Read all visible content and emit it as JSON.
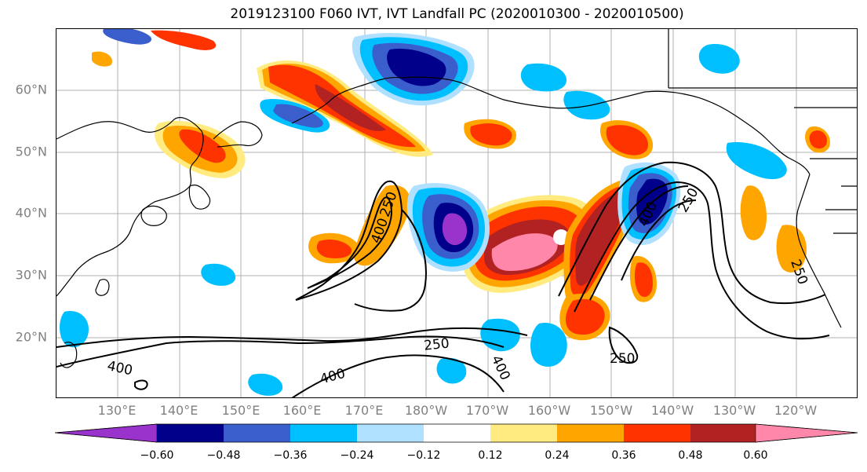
{
  "title": "2019123100 F060 IVT, IVT Landfall PC (2020010300 - 2020010500)",
  "lat_labels": [
    "60°N",
    "50°N",
    "40°N",
    "30°N",
    "20°N"
  ],
  "lon_labels": [
    "130°E",
    "140°E",
    "150°E",
    "160°E",
    "170°E",
    "180°W",
    "170°W",
    "160°W",
    "150°W",
    "140°W",
    "130°W",
    "120°W"
  ],
  "contour_labels": [
    "250",
    "400",
    "400",
    "250",
    "400",
    "400",
    "250",
    "250",
    "400",
    "250"
  ],
  "colorbar": {
    "tick_labels": [
      "−0.60",
      "−0.48",
      "−0.36",
      "−0.24",
      "−0.12",
      "0.12",
      "0.24",
      "0.36",
      "0.48",
      "0.60"
    ],
    "colors": [
      "#9933cc",
      "#00008b",
      "#3a5fcd",
      "#00bfff",
      "#b0e0ff",
      "#ffffff",
      "#ffeb80",
      "#ffa500",
      "#ff3300",
      "#b22222",
      "#ff88aa"
    ]
  }
}
